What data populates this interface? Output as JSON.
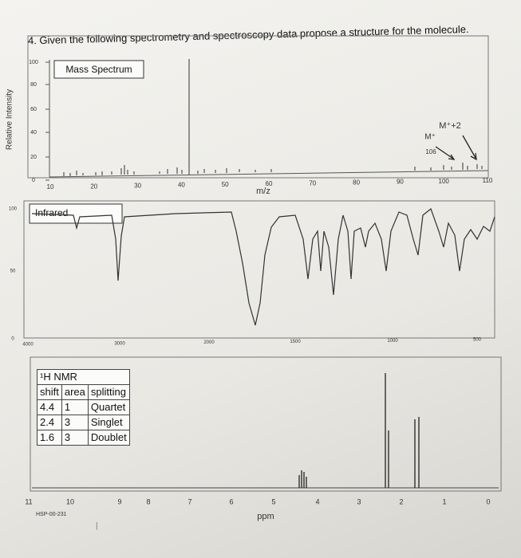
{
  "question": "4. Given the following spectrometry and spectroscopy data propose a structure for the molecule.",
  "mass_spectrum": {
    "title": "Mass Spectrum",
    "y_label": "Relative Intensity",
    "y_ticks": [
      "100",
      "80",
      "60",
      "40",
      "20",
      "0"
    ],
    "x_ticks": [
      "10",
      "20",
      "30",
      "40",
      "50",
      "60",
      "70",
      "80",
      "90",
      "100",
      "110"
    ],
    "x_label": "m/z",
    "annotations": {
      "m_ion": "M⁺",
      "m_value": "106",
      "m_plus_2": "M⁺+2"
    }
  },
  "infrared": {
    "title": "Infrared",
    "y_ticks": [
      "100",
      "50",
      "0"
    ],
    "x_ticks": [
      "4000",
      "3000",
      "2000",
      "1500",
      "1000",
      "500"
    ]
  },
  "nmr": {
    "title": "¹H NMR",
    "table": {
      "header": [
        "shift",
        "area",
        "splitting"
      ],
      "rows": [
        [
          "4.4",
          "1",
          "Quartet"
        ],
        [
          "2.4",
          "3",
          "Singlet"
        ],
        [
          "1.6",
          "3",
          "Doublet"
        ]
      ]
    },
    "x_ticks": [
      "11",
      "10",
      "9",
      "8",
      "7",
      "6",
      "5",
      "4",
      "3",
      "2",
      "1",
      "0"
    ],
    "x_label": "ppm",
    "code": "HSP-00-231"
  }
}
